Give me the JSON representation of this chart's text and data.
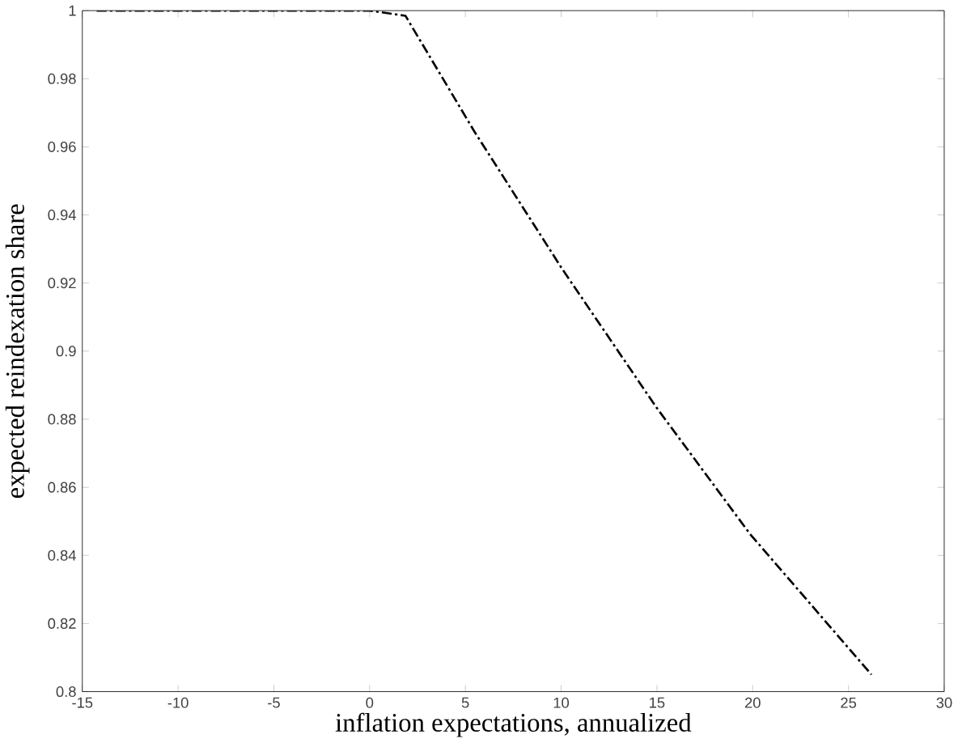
{
  "chart_data": {
    "type": "line",
    "xlabel": "inflation expectations, annualized",
    "ylabel": "expected reindexation share",
    "x": [
      -14.25,
      -10,
      -5,
      0,
      1.87,
      5.47,
      10.07,
      14.97,
      19.86,
      26.2
    ],
    "series": [
      {
        "color": "#000000",
        "values": [
          1,
          1,
          1,
          1,
          0.9985,
          0.9645,
          0.924,
          0.8835,
          0.8463,
          0.805
        ]
      }
    ],
    "line_style": "dashdot",
    "xlim": [
      -15,
      30
    ],
    "ylim": [
      0.8,
      1
    ],
    "xticks": [
      -15,
      -10,
      -5,
      0,
      5,
      10,
      15,
      20,
      25,
      30
    ],
    "yticks": [
      0.8,
      0.82,
      0.84,
      0.86,
      0.88,
      0.9,
      0.92,
      0.94,
      0.96,
      0.98,
      1
    ],
    "grid": false
  }
}
